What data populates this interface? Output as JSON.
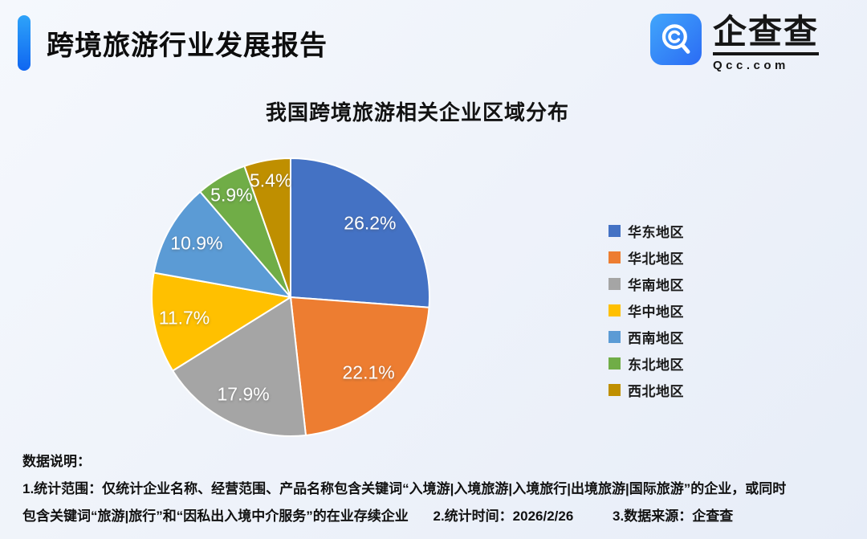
{
  "header": {
    "title": "跨境旅游行业发展报告",
    "accent_bar_colors": [
      "#2ea3f9",
      "#0f66f1"
    ],
    "logo": {
      "name": "企查查",
      "domain": "Qcc.com",
      "icon_colors": [
        "#41a6fb",
        "#2b6bf4"
      ]
    }
  },
  "chart_data": {
    "type": "pie",
    "title": "我国跨境旅游相关企业区域分布",
    "categories": [
      "华东地区",
      "华北地区",
      "华南地区",
      "华中地区",
      "西南地区",
      "东北地区",
      "西北地区"
    ],
    "values": [
      26.2,
      22.1,
      17.9,
      11.7,
      10.9,
      5.9,
      5.4
    ],
    "labels": [
      "26.2%",
      "22.1%",
      "17.9%",
      "11.7%",
      "10.9%",
      "5.9%",
      "5.4%"
    ],
    "unit": "%",
    "colors": [
      "#4472C4",
      "#ED7D31",
      "#A5A5A5",
      "#FFC000",
      "#5B9BD5",
      "#70AD47",
      "#BF8F00"
    ],
    "start_angle_deg": 0,
    "direction": "clockwise",
    "legend_position": "right",
    "label_position": "inside",
    "slice_border_color": "#ffffff"
  },
  "notes": {
    "title": "数据说明：",
    "line1": "1.统计范围：仅统计企业名称、经营范围、产品名称包含关键词“入境游|入境旅游|入境旅行|出境旅游|国际旅游”的企业，或同时",
    "line2": "包含关键词“旅游|旅行”和“因私出入境中介服务”的在业存续企业",
    "stat_time": "2.统计时间：2026/2/26",
    "source": "3.数据来源：企查查"
  }
}
